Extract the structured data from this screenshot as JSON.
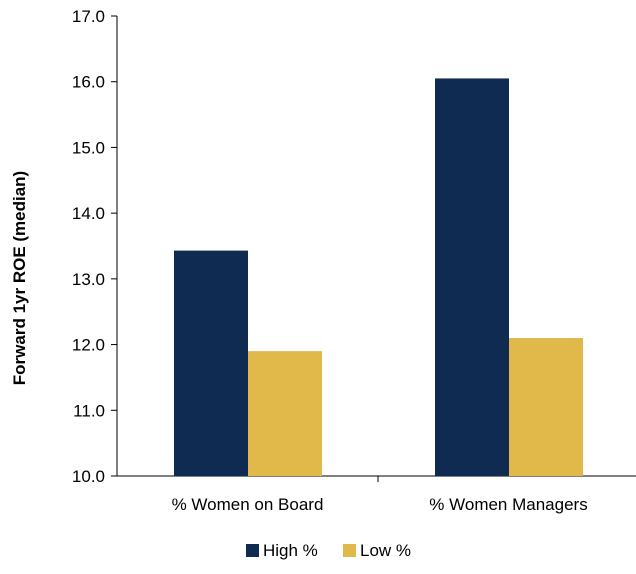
{
  "chart_data": {
    "type": "bar",
    "title": "",
    "xlabel": "",
    "ylabel": "Forward 1yr  ROE (median)",
    "ylim": [
      10.0,
      17.0
    ],
    "ytick_step": 1.0,
    "yticks": [
      "10.0",
      "11.0",
      "12.0",
      "13.0",
      "14.0",
      "15.0",
      "16.0",
      "17.0"
    ],
    "categories": [
      "% Women on Board",
      "% Women Managers"
    ],
    "series": [
      {
        "name": "High %",
        "values": [
          13.43,
          16.05
        ],
        "color": "#0f2b52"
      },
      {
        "name": "Low %",
        "values": [
          11.9,
          12.1
        ],
        "color": "#e0b94a"
      }
    ],
    "grid": false,
    "legend": "bottom"
  }
}
